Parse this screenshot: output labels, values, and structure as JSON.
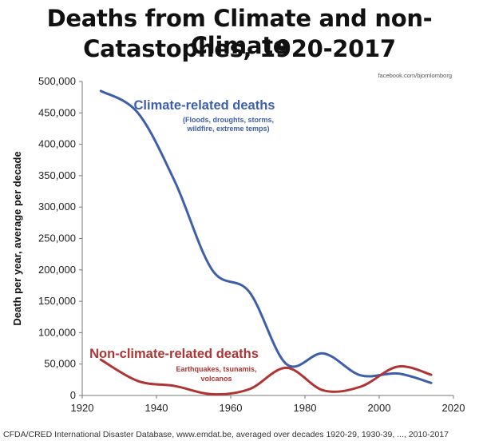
{
  "chart_data": {
    "type": "line",
    "title_line1": "Deaths from Climate and non-Climate",
    "title_line2": "Catastophes, 1920-2017",
    "attribution": "facebook.com/bjornlomborg",
    "ylabel": "Death per year, average per decade",
    "xlabel": "",
    "xlim": [
      1920,
      2020
    ],
    "ylim": [
      0,
      500000
    ],
    "x_ticks": [
      "1920",
      "1940",
      "1960",
      "1980",
      "2000",
      "2020"
    ],
    "y_ticks": [
      "0",
      "50,000",
      "100,000",
      "150,000",
      "200,000",
      "250,000",
      "300,000",
      "350,000",
      "400,000",
      "450,000",
      "500,000"
    ],
    "grid": false,
    "series": [
      {
        "name": "Climate-related deaths",
        "note": "(Floods, droughts, storms, wildfire, extreme temps)",
        "note_line1": "(Floods, droughts, storms,",
        "note_line2": "wildfire, extreme temps)",
        "color": "#3d5faa",
        "x": [
          1925,
          1935,
          1945,
          1955,
          1965,
          1975,
          1985,
          1995,
          2005,
          2014
        ],
        "values": [
          485000,
          450000,
          340000,
          200000,
          165000,
          50000,
          67000,
          32000,
          35000,
          20000
        ]
      },
      {
        "name": "Non-climate-related deaths",
        "note": "Earthquakes, tsunamis, volcanos",
        "note_line1": "Earthquakes, tsunamis,",
        "note_line2": "volcanos",
        "color": "#b03434",
        "x": [
          1925,
          1935,
          1945,
          1955,
          1965,
          1975,
          1985,
          1995,
          2005,
          2014
        ],
        "values": [
          57000,
          23000,
          15000,
          2000,
          10000,
          44000,
          8000,
          14000,
          46000,
          33000
        ]
      }
    ]
  },
  "footer": "CFDA/CRED International Disaster Database, www.emdat.be, averaged over decades 1920-29, 1930-39, ..., 2010-2017"
}
